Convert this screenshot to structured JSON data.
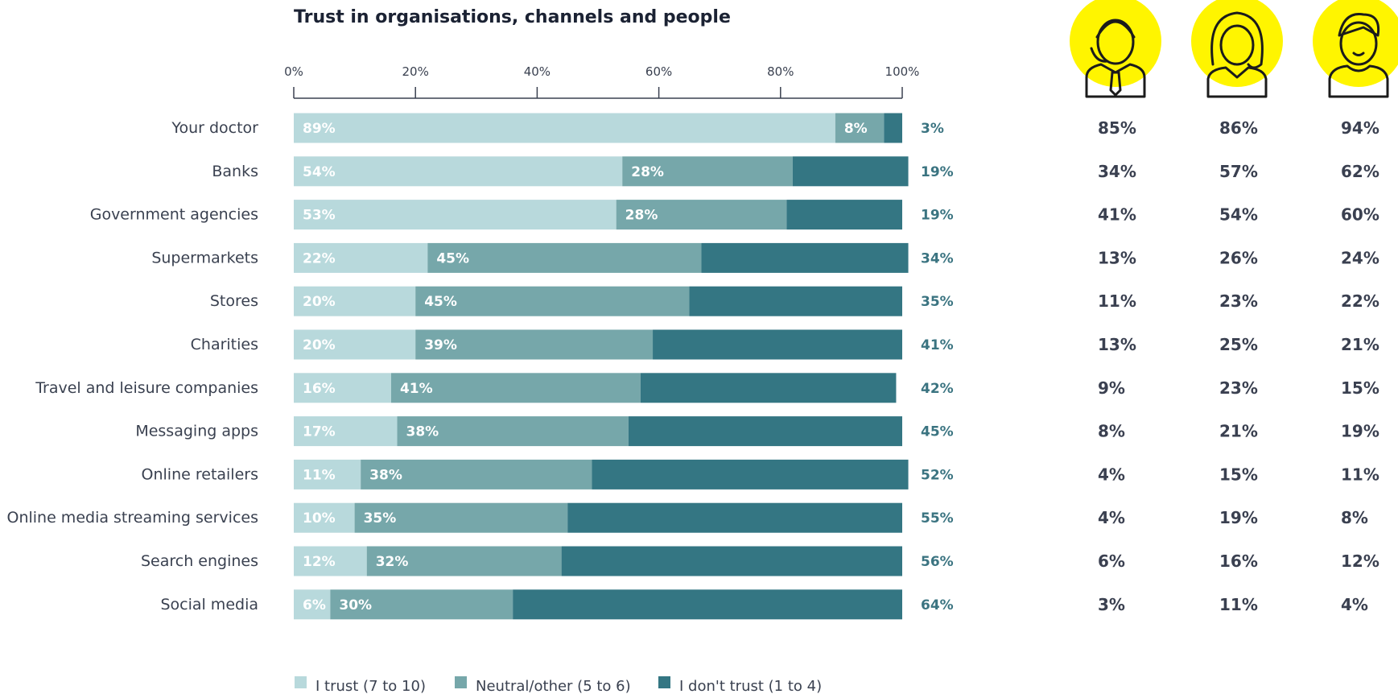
{
  "chart_data": {
    "type": "bar",
    "orientation": "horizontal",
    "stacked": true,
    "title": "Trust in organisations, channels and people",
    "x_ticks": [
      "0%",
      "20%",
      "40%",
      "60%",
      "80%",
      "100%"
    ],
    "xlim": [
      0,
      100
    ],
    "legend_position": "bottom-left",
    "categories": [
      "Your doctor",
      "Banks",
      "Government agencies",
      "Supermarkets",
      "Stores",
      "Charities",
      "Travel and leisure companies",
      "Messaging apps",
      "Online retailers",
      "Online media streaming services",
      "Search engines",
      "Social media"
    ],
    "series": [
      {
        "name": "I trust (7 to 10)",
        "color": "#b8d9dc",
        "values": [
          89,
          54,
          53,
          22,
          20,
          20,
          16,
          17,
          11,
          10,
          12,
          6
        ]
      },
      {
        "name": "Neutral/other (5 to 6)",
        "color": "#76a7aa",
        "values": [
          8,
          28,
          28,
          45,
          45,
          39,
          41,
          38,
          38,
          35,
          32,
          30
        ]
      },
      {
        "name": "I don't trust (1 to 4)",
        "color": "#347683",
        "values": [
          3,
          19,
          19,
          34,
          35,
          41,
          42,
          45,
          52,
          55,
          56,
          64
        ]
      }
    ],
    "persona_columns": [
      {
        "icon": "man-with-tie-icon",
        "values": [
          "85%",
          "34%",
          "41%",
          "13%",
          "11%",
          "13%",
          "9%",
          "8%",
          "4%",
          "4%",
          "6%",
          "3%"
        ]
      },
      {
        "icon": "woman-icon",
        "values": [
          "86%",
          "57%",
          "54%",
          "26%",
          "23%",
          "25%",
          "23%",
          "21%",
          "15%",
          "19%",
          "16%",
          "11%"
        ]
      },
      {
        "icon": "young-man-icon",
        "values": [
          "94%",
          "62%",
          "60%",
          "24%",
          "22%",
          "21%",
          "15%",
          "19%",
          "11%",
          "8%",
          "12%",
          "4%"
        ]
      }
    ],
    "persona_icon_background": "#fff500"
  }
}
